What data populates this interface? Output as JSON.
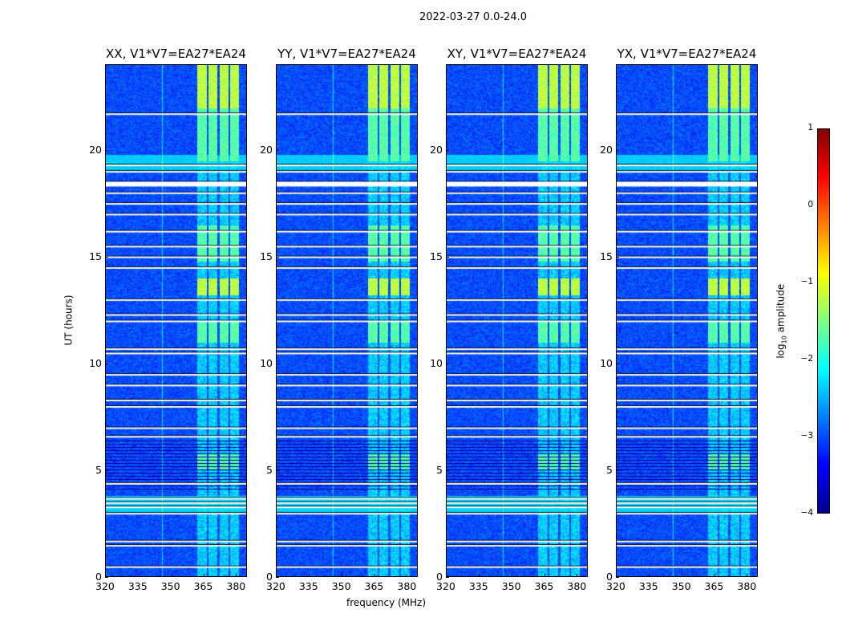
{
  "suptitle": "2022-03-27 0.0-24.0",
  "chart_data": {
    "type": "heatmap",
    "title": "2022-03-27 0.0-24.0",
    "xlabel": "frequency (MHz)",
    "ylabel": "UT (hours)",
    "xlim": [
      320,
      385
    ],
    "ylim": [
      0,
      24
    ],
    "xticks": [
      "320",
      "335",
      "350",
      "365",
      "380"
    ],
    "yticks": [
      "0",
      "5",
      "10",
      "15",
      "20"
    ],
    "panels": [
      {
        "title": "XX, V1*V7=EA27*EA24"
      },
      {
        "title": "YY, V1*V7=EA27*EA24"
      },
      {
        "title": "XY, V1*V7=EA27*EA24"
      },
      {
        "title": "YX, V1*V7=EA27*EA24"
      }
    ],
    "rfi_bands_mhz": [
      [
        362,
        366.5
      ],
      [
        367.5,
        371.5
      ],
      [
        372.5,
        376.5
      ],
      [
        377.5,
        381.5
      ]
    ],
    "flagged_hours": [
      0.5,
      1.5,
      1.7,
      3.0,
      3.3,
      3.5,
      3.7,
      4.4,
      6.6,
      7.0,
      8.0,
      8.3,
      9.0,
      9.5,
      10.5,
      10.7,
      12.0,
      12.3,
      13.0,
      14.5,
      15.0,
      15.5,
      16.2,
      17.0,
      17.5,
      18.0,
      18.5,
      19.0,
      19.3,
      21.7
    ],
    "colorbar": {
      "label": "log10 amplitude",
      "label_main": "log",
      "label_sub": "10",
      "label_rest": " amplitude",
      "range": [
        -4,
        1
      ],
      "ticks": [
        "−4",
        "−3",
        "−2",
        "−1",
        "0",
        "1"
      ],
      "colormap": "jet"
    }
  }
}
